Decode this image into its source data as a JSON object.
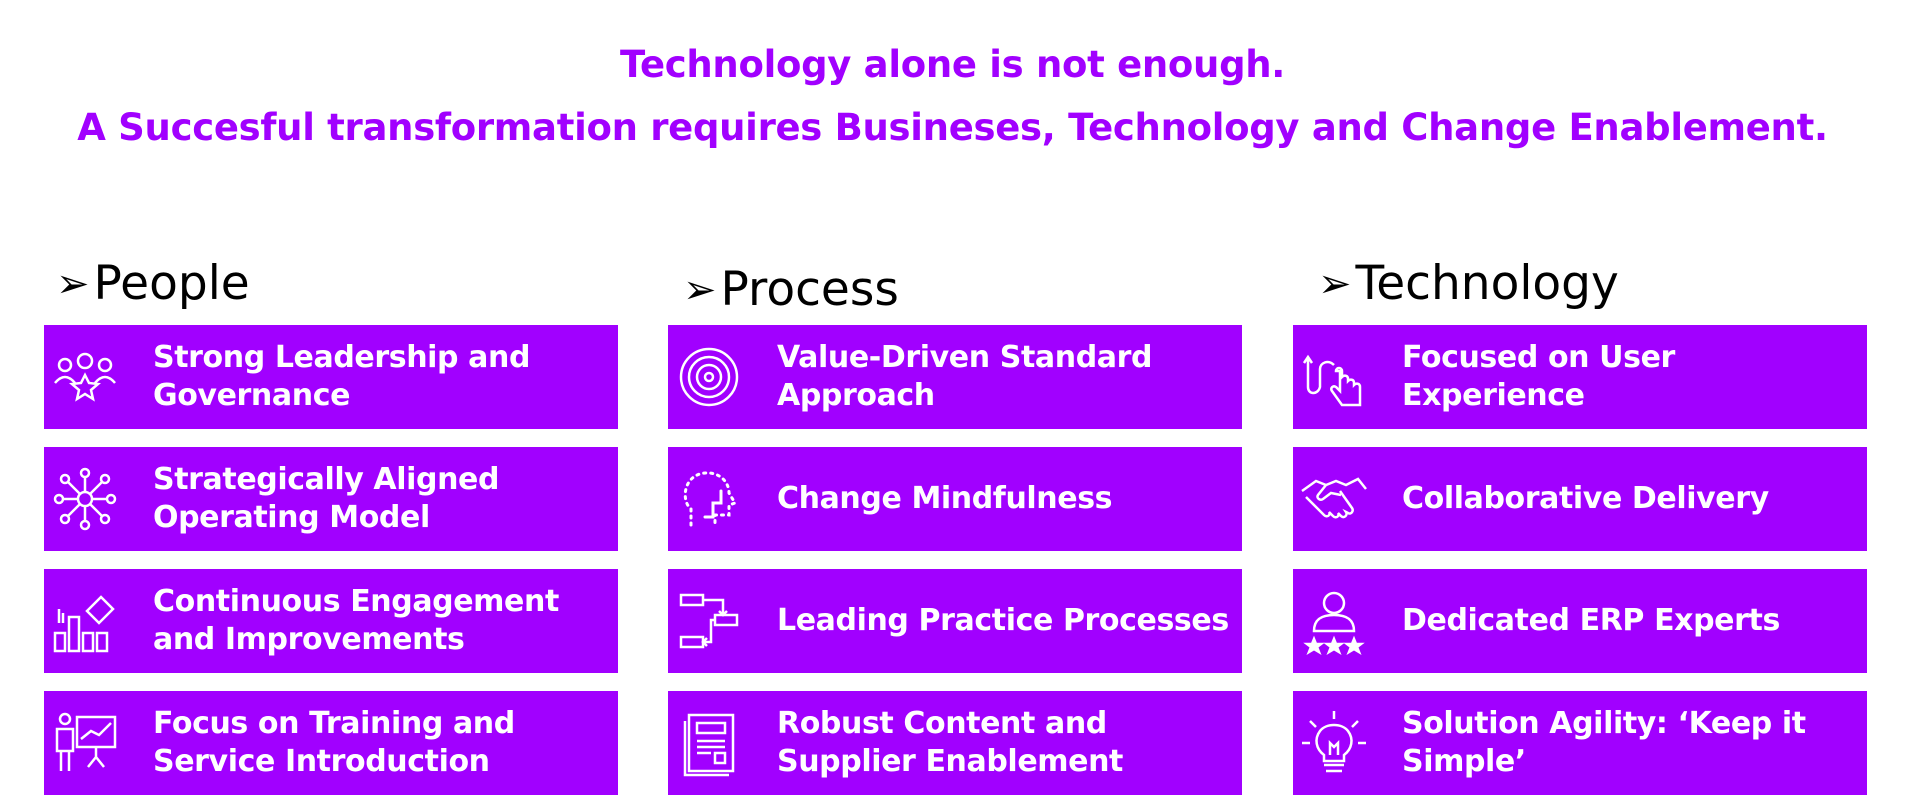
{
  "header": {
    "line1": "Technology alone is not enough.",
    "line2": "A Succesful transformation requires Busineses, Technology and Change Enablement."
  },
  "accent_color": "#a100ff",
  "columns": [
    {
      "title": "People",
      "cards": [
        {
          "label": "Strong Leadership and Governance",
          "icon": "leadership-icon"
        },
        {
          "label": "Strategically Aligned Operating Model",
          "icon": "network-hub-icon"
        },
        {
          "label": "Continuous Engagement and Improvements",
          "icon": "growth-chart-icon"
        },
        {
          "label": "Focus on Training and Service Introduction",
          "icon": "presentation-icon"
        }
      ]
    },
    {
      "title": "Process",
      "cards": [
        {
          "label": "Value-Driven Standard Approach",
          "icon": "target-spiral-icon"
        },
        {
          "label": "Change Mindfulness",
          "icon": "mind-head-icon"
        },
        {
          "label": "Leading Practice Processes",
          "icon": "process-flow-icon"
        },
        {
          "label": "Robust Content and Supplier Enablement",
          "icon": "document-icon"
        }
      ]
    },
    {
      "title": "Technology",
      "cards": [
        {
          "label": "Focused on User Experience",
          "icon": "touch-hand-icon"
        },
        {
          "label": "Collaborative Delivery",
          "icon": "handshake-icon"
        },
        {
          "label": "Dedicated ERP Experts",
          "icon": "expert-stars-icon"
        },
        {
          "label": "Solution Agility: ‘Keep it Simple’",
          "icon": "lightbulb-icon"
        }
      ]
    }
  ]
}
